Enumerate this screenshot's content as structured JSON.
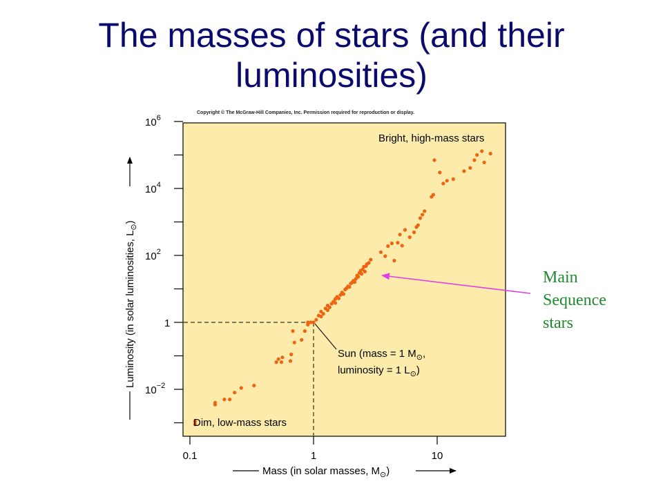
{
  "slide": {
    "title_line1": "The masses of stars (and their",
    "title_line2": "luminosities)",
    "copyright": "Copyright © The McGraw-Hill Companies, Inc. Permission required for reproduction or display."
  },
  "annotation": {
    "line1": "Main",
    "line2": "Sequence",
    "line3": "stars",
    "color": "#1f8a2e",
    "arrow_color": "#e040e0"
  },
  "chart_data": {
    "type": "scatter",
    "xscale": "log",
    "yscale": "log",
    "xlim": [
      0.1,
      30
    ],
    "ylim": [
      0.0003,
      1000000
    ],
    "xlabel_main": "Mass (in solar masses, M",
    "xlabel_close": ")",
    "ylabel_main": "Luminosity (in solar luminosities, L",
    "ylabel_close": ")",
    "x_tick_labels": [
      "0.1",
      "1",
      "10"
    ],
    "y_tick_labels": [
      {
        "base": "10",
        "exp": "6"
      },
      {
        "base": "10",
        "exp": "4"
      },
      {
        "base": "10",
        "exp": "2"
      },
      {
        "base": "1",
        "exp": ""
      },
      {
        "base": "10",
        "exp": "−2"
      }
    ],
    "labels": {
      "top_right": "Bright, high-mass stars",
      "bottom_left": "Dim, low-mass stars",
      "sun_line1": "Sun (mass = 1 M",
      "sun_line1_end": ",",
      "sun_line2": "luminosity = 1 L",
      "sun_line2_end": ")"
    },
    "colors": {
      "background": "#fcebaa",
      "points": "#ee6411",
      "axes": "#000000"
    },
    "points": [
      [
        0.11,
        0.0009
      ],
      [
        0.11,
        0.0011
      ],
      [
        0.16,
        0.0035
      ],
      [
        0.16,
        0.004
      ],
      [
        0.19,
        0.005
      ],
      [
        0.21,
        0.005
      ],
      [
        0.23,
        0.008
      ],
      [
        0.26,
        0.011
      ],
      [
        0.33,
        0.013
      ],
      [
        0.5,
        0.065
      ],
      [
        0.52,
        0.08
      ],
      [
        0.55,
        0.065
      ],
      [
        0.56,
        0.09
      ],
      [
        0.65,
        0.07
      ],
      [
        0.66,
        0.11
      ],
      [
        0.7,
        0.25
      ],
      [
        0.68,
        0.55
      ],
      [
        0.8,
        0.3
      ],
      [
        0.85,
        0.55
      ],
      [
        0.9,
        0.85
      ],
      [
        0.9,
        1.0
      ],
      [
        0.95,
        1.0
      ],
      [
        1.0,
        1.0
      ],
      [
        1.05,
        1.2
      ],
      [
        1.1,
        1.6
      ],
      [
        1.15,
        1.5
      ],
      [
        1.15,
        2.1
      ],
      [
        1.2,
        1.8
      ],
      [
        1.25,
        2.6
      ],
      [
        1.3,
        2.3
      ],
      [
        1.3,
        3.2
      ],
      [
        1.35,
        2.8
      ],
      [
        1.4,
        3.6
      ],
      [
        1.45,
        4.2
      ],
      [
        1.5,
        5.0
      ],
      [
        1.5,
        3.8
      ],
      [
        1.55,
        5.8
      ],
      [
        1.6,
        5.2
      ],
      [
        1.65,
        6.6
      ],
      [
        1.7,
        7.8
      ],
      [
        1.75,
        7.0
      ],
      [
        1.8,
        9.6
      ],
      [
        1.85,
        10.5
      ],
      [
        1.9,
        12.0
      ],
      [
        1.95,
        11.5
      ],
      [
        2.0,
        14.5
      ],
      [
        2.05,
        15.5
      ],
      [
        2.1,
        17.5
      ],
      [
        2.15,
        16.0
      ],
      [
        2.2,
        20.0
      ],
      [
        2.25,
        25.0
      ],
      [
        2.3,
        23.0
      ],
      [
        2.35,
        30.0
      ],
      [
        2.4,
        35.0
      ],
      [
        2.45,
        28.0
      ],
      [
        2.5,
        38.0
      ],
      [
        2.55,
        46.0
      ],
      [
        2.6,
        33.0
      ],
      [
        2.65,
        48.0
      ],
      [
        2.7,
        55.0
      ],
      [
        2.8,
        60.0
      ],
      [
        2.9,
        75.0
      ],
      [
        3.5,
        125.0
      ],
      [
        3.8,
        95.0
      ],
      [
        4.0,
        190.0
      ],
      [
        4.3,
        230.0
      ],
      [
        4.8,
        240.0
      ],
      [
        5.0,
        420.0
      ],
      [
        5.2,
        195.0
      ],
      [
        5.5,
        580.0
      ],
      [
        6.0,
        350.0
      ],
      [
        6.5,
        490.0
      ],
      [
        6.8,
        700.0
      ],
      [
        7.0,
        800.0
      ],
      [
        7.3,
        1300.0
      ],
      [
        7.6,
        1650.0
      ],
      [
        7.9,
        2100.0
      ],
      [
        4.5,
        70.0
      ],
      [
        9.0,
        5600.0
      ],
      [
        9.3,
        6500.0
      ],
      [
        9.5,
        70000.0
      ],
      [
        10.5,
        30000.0
      ],
      [
        11.2,
        14000.0
      ],
      [
        12.0,
        17000.0
      ],
      [
        13.5,
        19000.0
      ],
      [
        16.5,
        33000.0
      ],
      [
        18.5,
        41000.0
      ],
      [
        20.0,
        70000.0
      ],
      [
        21.0,
        100000.0
      ],
      [
        23.0,
        130000.0
      ],
      [
        24.0,
        60000.0
      ],
      [
        27.0,
        110000.0
      ]
    ]
  }
}
